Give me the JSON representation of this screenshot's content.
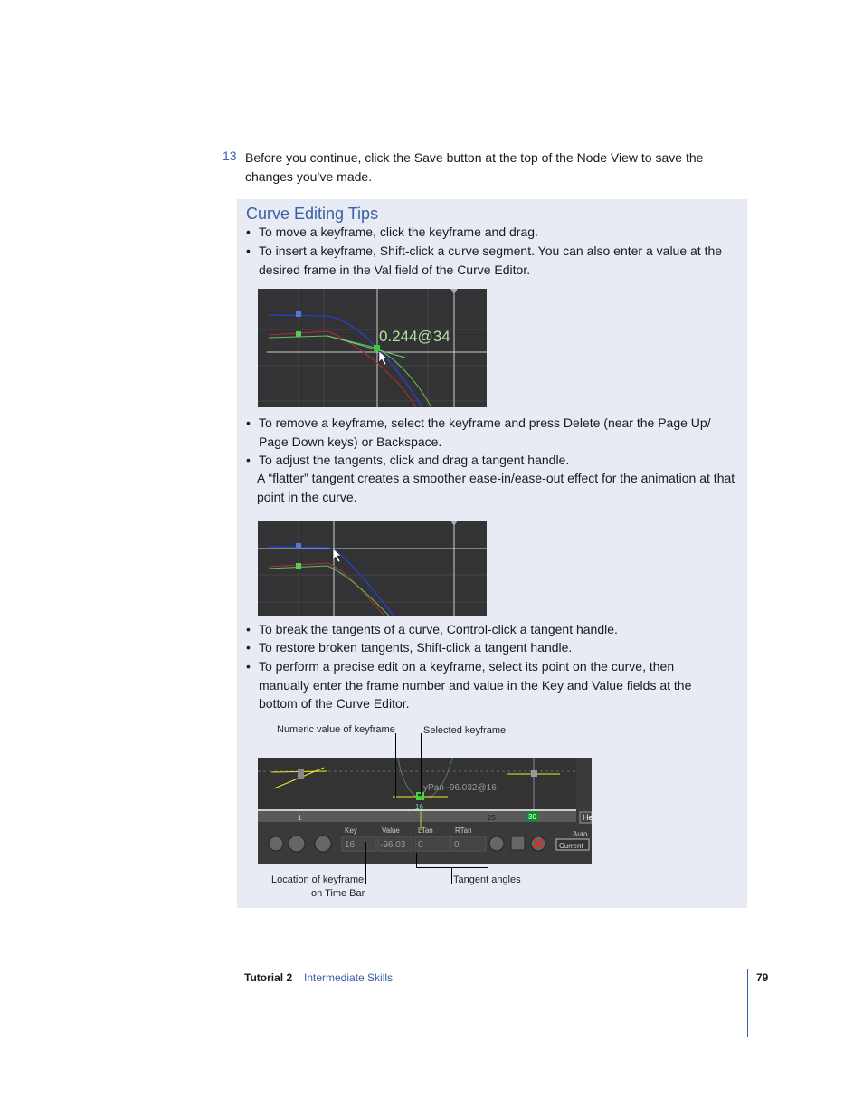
{
  "step": {
    "number": "13",
    "text": "Before you continue, click the Save button at the top of the Node View to save the changes you’ve made."
  },
  "tips": {
    "title": "Curve Editing Tips",
    "bullets": [
      "To move a keyframe, click the keyframe and drag.",
      "To insert a keyframe, Shift-click a curve segment. You can also enter a value at the desired frame in the Val field of the Curve Editor.",
      "To remove a keyframe, select the keyframe and press Delete (near the Page Up/ Page Down keys) or Backspace.",
      "To adjust the tangents, click and drag a tangent handle.",
      "To break the tangents of a curve, Control-click a tangent handle.",
      "To restore broken tangents, Shift-click a tangent handle.",
      "To perform a precise edit on a keyframe, select its point on the curve, then manually enter the frame number and value in the Key and Value fields at the bottom of the Curve Editor."
    ],
    "flatter_note": "A “flatter” tangent creates a smoother ease-in/ease-out effect for the animation at that point in the curve.",
    "bullet_char": "•"
  },
  "figure1": {
    "readout": "0.244@34"
  },
  "figure3": {
    "readout": "yPan -96.032@16",
    "ruler": {
      "start": "1",
      "mid": "25",
      "end": "30",
      "current": "16"
    },
    "fields": {
      "key_label": "Key",
      "value_label": "Value",
      "ltan_label": "LTan",
      "rtan_label": "RTan",
      "key": "16",
      "value": "-96.03",
      "ltan": "0",
      "rtan": "0"
    },
    "auto_label": "Auto",
    "current_button": "Current",
    "side_button": "He",
    "callouts": {
      "numeric": "Numeric value of keyframe",
      "selected": "Selected keyframe",
      "location_1": "Location of keyframe",
      "location_2": "on Time Bar",
      "tangent": "Tangent angles"
    }
  },
  "footer": {
    "tutorial": "Tutorial 2",
    "section": "Intermediate Skills",
    "page": "79"
  },
  "colors": {
    "accent": "#3a5fa8",
    "box": "#e8ebf3",
    "screen_bg": "#333336"
  }
}
